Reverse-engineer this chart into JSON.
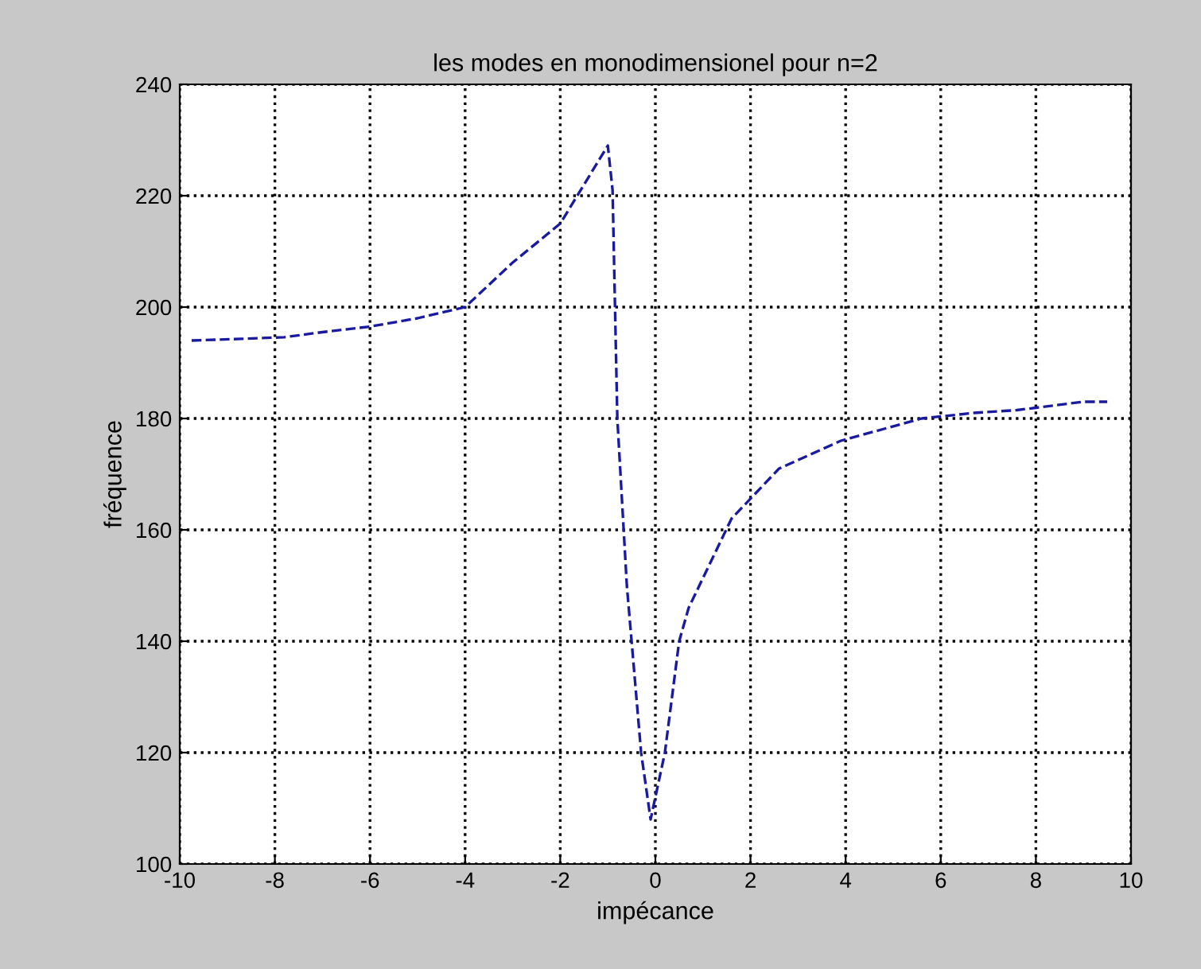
{
  "chart_data": {
    "type": "line",
    "title": "les modes en monodimensionel pour n=2",
    "xlabel": "impécance",
    "ylabel": "fréquence",
    "series": [
      {
        "color": "#1a1aa0",
        "x": [
          -9.75,
          -8.7,
          -7.8,
          -7,
          -6,
          -5,
          -4,
          -3,
          -2,
          -1.5,
          -1,
          -0.9,
          -0.8,
          -0.6,
          -0.5,
          -0.3,
          -0.1,
          0.2,
          0.5,
          0.7,
          1.6,
          2.6,
          3.9,
          5.6,
          6.7,
          7.6,
          9.0,
          9.5
        ],
        "values": [
          194,
          194.3,
          194.6,
          195.5,
          196.5,
          198,
          200,
          208,
          215,
          222,
          229,
          221,
          180,
          150,
          140,
          120,
          108,
          120,
          140,
          146,
          162,
          171,
          176,
          180,
          181,
          181.5,
          183,
          183
        ]
      }
    ],
    "xlim": [
      -10,
      10
    ],
    "ylim": [
      100,
      240
    ],
    "xticks": [
      -10,
      -8,
      -6,
      -4,
      -2,
      0,
      2,
      4,
      6,
      8,
      10
    ],
    "yticks": [
      100,
      120,
      140,
      160,
      180,
      200,
      220,
      240
    ],
    "grid": true,
    "line_style": "dashed",
    "marker": "none"
  }
}
